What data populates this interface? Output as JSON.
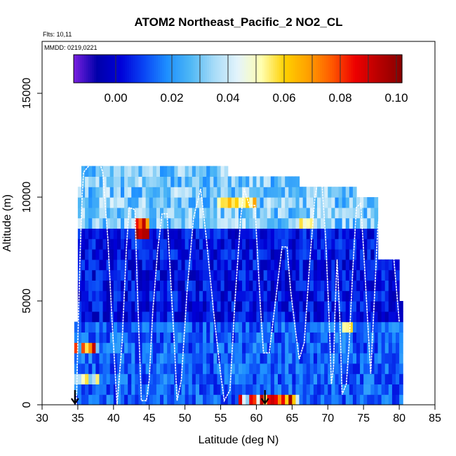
{
  "chart_data": {
    "type": "heatmap",
    "title": "ATOM2 Northeast_Pacific_2 NO2_CL",
    "subtitle_flights": "Flts: 10,11",
    "subtitle_dates": "MMDD: 0219,0221",
    "xlabel": "Latitude (deg N)",
    "ylabel": "Altitude (m)",
    "xlim": [
      30,
      85
    ],
    "ylim": [
      0,
      17500
    ],
    "x_ticks": [
      30,
      35,
      40,
      45,
      50,
      55,
      60,
      65,
      70,
      75,
      80,
      85
    ],
    "y_ticks": [
      0,
      5000,
      10000,
      15000
    ],
    "colorbar": {
      "range": [
        -0.015,
        0.102
      ],
      "ticks": [
        0.0,
        0.02,
        0.04,
        0.06,
        0.08,
        0.1
      ],
      "tick_labels": [
        "0.00",
        "0.02",
        "0.04",
        "0.06",
        "0.08",
        "0.10"
      ],
      "extra_lines": [
        0.03,
        0.05,
        0.07,
        0.09,
        0.1
      ],
      "colors": [
        "#7a20e0",
        "#0000aa",
        "#0000d8",
        "#0a46f5",
        "#1e90ff",
        "#4fb8f5",
        "#a8dcf8",
        "#e4f4fb",
        "#ffffb0",
        "#ffd000",
        "#ffa000",
        "#ff5a00",
        "#ee0000",
        "#b80000",
        "#880000"
      ]
    },
    "markers": [
      {
        "lat": 34.6,
        "label": "start"
      },
      {
        "lat": 61.2,
        "label": "end"
      }
    ],
    "flight_track": [
      [
        34.8,
        0
      ],
      [
        35.0,
        3000
      ],
      [
        35.3,
        7000
      ],
      [
        35.6,
        10000
      ],
      [
        35.8,
        11200
      ],
      [
        37.0,
        11700
      ],
      [
        38.0,
        11700
      ],
      [
        38.5,
        11200
      ],
      [
        39.2,
        8000
      ],
      [
        39.8,
        4000
      ],
      [
        40.5,
        0
      ],
      [
        41.2,
        3000
      ],
      [
        41.8,
        7500
      ],
      [
        42.2,
        9500
      ],
      [
        43.0,
        9400
      ],
      [
        43.3,
        6000
      ],
      [
        43.6,
        3000
      ],
      [
        43.9,
        200
      ],
      [
        44.6,
        200
      ],
      [
        45.0,
        1200
      ],
      [
        45.5,
        4500
      ],
      [
        46.2,
        7500
      ],
      [
        46.8,
        9200
      ],
      [
        47.5,
        9200
      ],
      [
        48.0,
        6000
      ],
      [
        48.5,
        3000
      ],
      [
        48.9,
        200
      ],
      [
        49.5,
        1200
      ],
      [
        50.3,
        5500
      ],
      [
        51.2,
        9000
      ],
      [
        52.2,
        10400
      ],
      [
        53.0,
        8000
      ],
      [
        54.0,
        4500
      ],
      [
        55.0,
        1500
      ],
      [
        55.5,
        200
      ],
      [
        56.3,
        700
      ],
      [
        57.0,
        5000
      ],
      [
        57.8,
        9000
      ],
      [
        58.3,
        10400
      ],
      [
        59.0,
        9600
      ],
      [
        59.8,
        9600
      ],
      [
        60.2,
        7000
      ],
      [
        60.6,
        4500
      ],
      [
        61.0,
        2500
      ],
      [
        61.8,
        2500
      ],
      [
        62.5,
        4500
      ],
      [
        63.2,
        6500
      ],
      [
        63.6,
        7600
      ],
      [
        64.3,
        7600
      ],
      [
        64.8,
        5500
      ],
      [
        65.5,
        3500
      ],
      [
        66.0,
        2200
      ],
      [
        66.7,
        3000
      ],
      [
        67.5,
        7000
      ],
      [
        68.2,
        10000
      ],
      [
        68.5,
        10600
      ],
      [
        69.2,
        10600
      ],
      [
        69.7,
        8000
      ],
      [
        70.2,
        4000
      ],
      [
        70.5,
        1000
      ],
      [
        70.8,
        1800
      ],
      [
        71.0,
        4500
      ],
      [
        71.3,
        7000
      ],
      [
        71.7,
        4000
      ],
      [
        72.0,
        500
      ],
      [
        72.6,
        1000
      ],
      [
        73.0,
        3000
      ],
      [
        73.5,
        6500
      ],
      [
        74.0,
        9500
      ],
      [
        74.6,
        9700
      ],
      [
        75.0,
        7500
      ],
      [
        75.5,
        4500
      ],
      [
        76.0,
        1500
      ],
      [
        76.5,
        5000
      ],
      [
        77.0,
        8500
      ],
      [
        77.4,
        9600
      ],
      [
        78.5,
        9600
      ],
      [
        79.0,
        8000
      ],
      [
        79.5,
        6000
      ],
      [
        80.0,
        4000
      ]
    ]
  }
}
